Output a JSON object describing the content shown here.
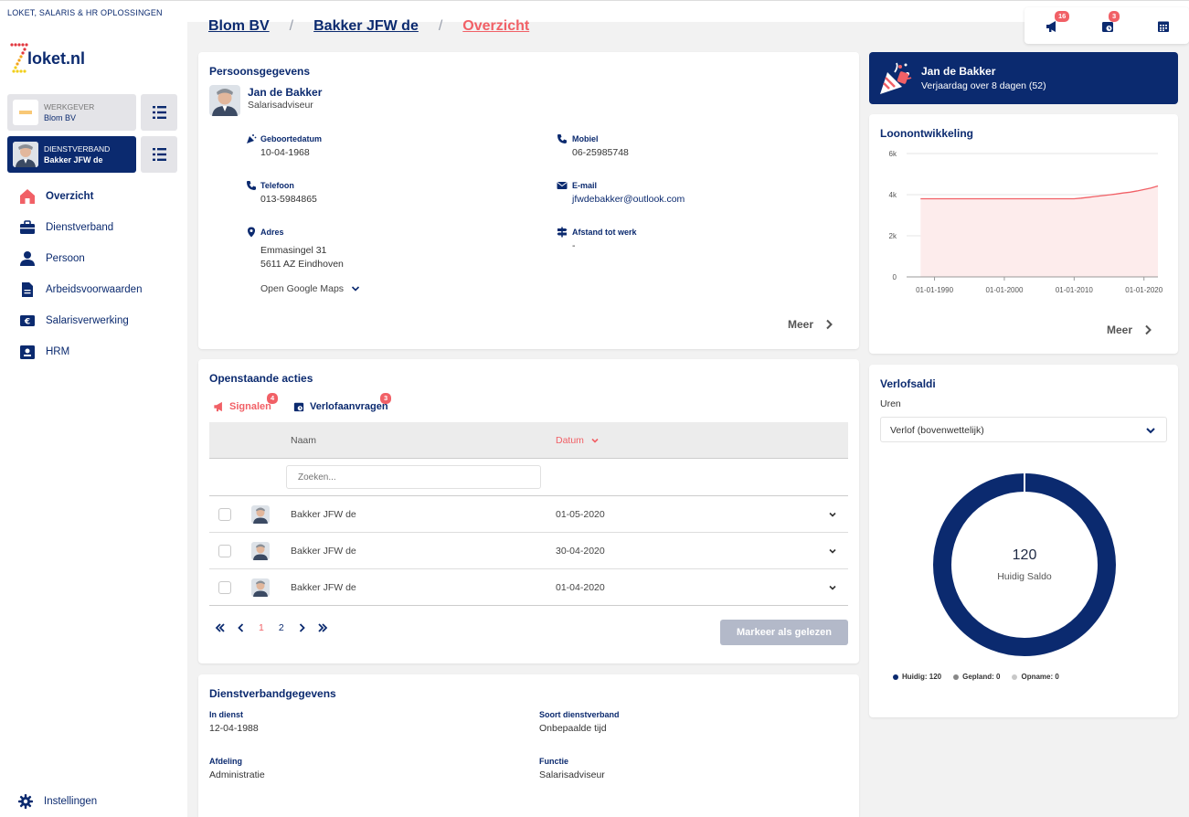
{
  "topbar": {
    "company_line": "LOKET, SALARIS & HR OPLOSSINGEN"
  },
  "logo": {
    "text": "loket.nl"
  },
  "context": {
    "employer": {
      "label": "WERKGEVER",
      "name": "Blom BV"
    },
    "employment": {
      "label": "DIENSTVERBAND",
      "name": "Bakker JFW de"
    }
  },
  "nav": [
    {
      "label": "Overzicht",
      "icon": "home-icon"
    },
    {
      "label": "Dienstverband",
      "icon": "briefcase-icon"
    },
    {
      "label": "Persoon",
      "icon": "person-icon"
    },
    {
      "label": "Arbeidsvoorwaarden",
      "icon": "document-icon"
    },
    {
      "label": "Salarisverwerking",
      "icon": "euro-icon"
    },
    {
      "label": "HRM",
      "icon": "id-card-icon"
    }
  ],
  "settings_label": "Instellingen",
  "breadcrumb": {
    "level1": "Blom BV",
    "level2": "Bakker JFW de",
    "current": "Overzicht",
    "separator": "/"
  },
  "topbuttons": {
    "signals_count": "16",
    "leave_count": "3"
  },
  "person": {
    "section_title": "Persoonsgegevens",
    "name": "Jan de Bakker",
    "role": "Salarisadviseur",
    "birthdate_label": "Geboortedatum",
    "birthdate": "10-04-1968",
    "mobile_label": "Mobiel",
    "mobile": "06-25985748",
    "phone_label": "Telefoon",
    "phone": "013-5984865",
    "email_label": "E-mail",
    "email": "jfwdebakker@outlook.com",
    "address_label": "Adres",
    "address_line1": "Emmasingel 31",
    "address_line2": "5611 AZ Eindhoven",
    "distance_label": "Afstand tot werk",
    "distance": "-",
    "maps_link": "Open Google Maps",
    "more": "Meer"
  },
  "actions": {
    "section_title": "Openstaande acties",
    "tab_signals": "Signalen",
    "tab_signals_count": "4",
    "tab_leave": "Verlofaanvragen",
    "tab_leave_count": "3",
    "col_name": "Naam",
    "col_date": "Datum",
    "search_placeholder": "Zoeken...",
    "rows": [
      {
        "name": "Bakker JFW de",
        "date": "01-05-2020"
      },
      {
        "name": "Bakker JFW de",
        "date": "30-04-2020"
      },
      {
        "name": "Bakker JFW de",
        "date": "01-04-2020"
      }
    ],
    "pages": [
      "1",
      "2"
    ],
    "mark_button": "Markeer als gelezen"
  },
  "employment": {
    "section_title": "Dienstverbandgegevens",
    "in_service_label": "In dienst",
    "in_service": "12-04-1988",
    "type_label": "Soort dienstverband",
    "type": "Onbepaalde tijd",
    "dept_label": "Afdeling",
    "dept": "Administratie",
    "function_label": "Functie",
    "function": "Salarisadviseur"
  },
  "birthday": {
    "name": "Jan de Bakker",
    "text": "Verjaardag over 8 dagen (52)"
  },
  "salary": {
    "section_title": "Loonontwikkeling",
    "more": "Meer"
  },
  "leave": {
    "section_title": "Verlofsaldi",
    "unit": "Uren",
    "selected_type": "Verlof (bovenwettelijk)",
    "center_value": "120",
    "center_label": "Huidig Saldo",
    "legend": [
      {
        "label": "Huidig: 120",
        "color": "#0b2a6f"
      },
      {
        "label": "Gepland: 0",
        "color": "#888888"
      },
      {
        "label": "Opname: 0",
        "color": "#c8c8c8"
      }
    ]
  },
  "chart_data": {
    "type": "area",
    "title": "",
    "xlabel": "",
    "ylabel": "",
    "x_ticks": [
      "01-01-1990",
      "01-01-2000",
      "01-01-2010",
      "01-01-2020"
    ],
    "y_ticks": [
      "0",
      "2k",
      "4k",
      "6k"
    ],
    "ylim": [
      0,
      6000
    ],
    "xlim": [
      1986,
      2022
    ],
    "series": [
      {
        "x": [
          1988,
          2010,
          2011,
          2012,
          2013,
          2014,
          2015,
          2016,
          2017,
          2018,
          2019,
          2020,
          2021,
          2022
        ],
        "values": [
          3800,
          3800,
          3830,
          3870,
          3910,
          3950,
          3990,
          4030,
          4080,
          4120,
          4180,
          4250,
          4320,
          4420
        ]
      }
    ],
    "colors": {
      "line": "#f16066",
      "fill": "#fdecec"
    }
  }
}
